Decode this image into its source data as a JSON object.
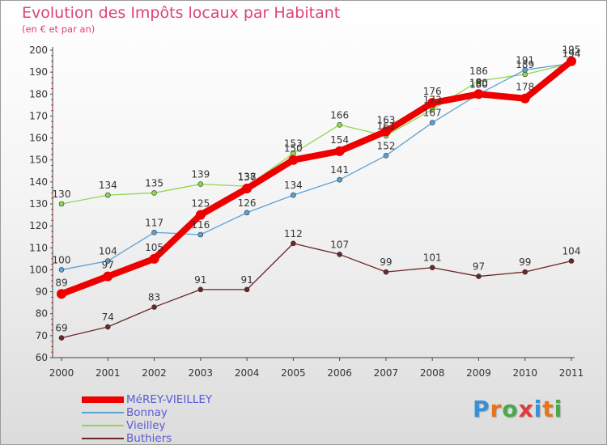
{
  "header": {
    "title": "Evolution des Impôts locaux par Habitant",
    "subtitle": "(en € et par an)"
  },
  "logo": {
    "text": "Proxiti",
    "letter_colors": [
      "#3a8fd6",
      "#e8731e",
      "#4aa84a",
      "#e23a3a",
      "#3a8fd6",
      "#e8731e",
      "#4aa84a"
    ]
  },
  "chart_data": {
    "type": "line",
    "x": [
      "2000",
      "2001",
      "2002",
      "2003",
      "2004",
      "2005",
      "2006",
      "2007",
      "2008",
      "2009",
      "2010",
      "2011"
    ],
    "ylim": [
      60,
      200
    ],
    "yticks": [
      60,
      70,
      80,
      90,
      100,
      110,
      120,
      130,
      140,
      150,
      160,
      170,
      180,
      190,
      200
    ],
    "grid": false,
    "legend_position": "bottom-left",
    "series": [
      {
        "name": "MéREY-VIEILLEY",
        "color": "#ee0000",
        "values": [
          89,
          97,
          105,
          125,
          137,
          150,
          154,
          163,
          176,
          180,
          178,
          195
        ]
      },
      {
        "name": "Bonnay",
        "color": "#5ba2d6",
        "values": [
          100,
          104,
          117,
          116,
          126,
          134,
          141,
          152,
          167,
          180,
          191,
          194
        ]
      },
      {
        "name": "Vieilley",
        "color": "#8ed84e",
        "values": [
          130,
          134,
          135,
          139,
          138,
          153,
          166,
          161,
          173,
          186,
          189,
          194
        ]
      },
      {
        "name": "Buthiers",
        "color": "#6b2626",
        "values": [
          69,
          74,
          83,
          91,
          91,
          112,
          107,
          99,
          101,
          97,
          99,
          104
        ]
      }
    ]
  }
}
